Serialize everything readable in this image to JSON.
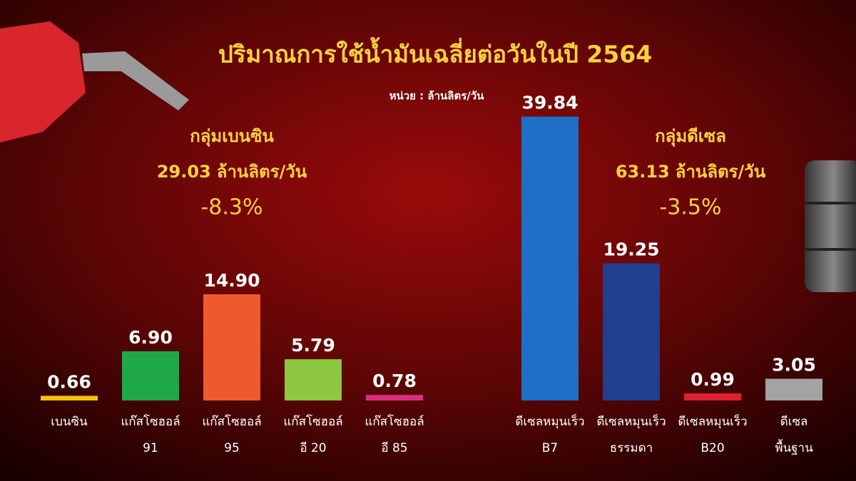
{
  "title": "ปริมาณการใช้น้ำมันเฉลี่ยต่อวันในปี 2564",
  "unit_note": "หน่วย : ล้านลิตร/วัน",
  "chart_data": [
    {
      "type": "bar",
      "group_title": "กลุ่มเบนซิน",
      "total": 29.03,
      "total_unit": "ล้านลิตร/วัน",
      "change": "-8.3%",
      "categories": [
        [
          "เบนซิน"
        ],
        [
          "แก๊สโซฮอล์",
          "91"
        ],
        [
          "แก๊สโซฮอล์",
          "95"
        ],
        [
          "แก๊สโซฮอล์",
          "อี 20"
        ],
        [
          "แก๊สโซฮอล์",
          "อี 85"
        ]
      ],
      "values": [
        0.66,
        6.9,
        14.9,
        5.79,
        0.78
      ],
      "value_labels": [
        "0.66",
        "6.90",
        "14.90",
        "5.79",
        "0.78"
      ],
      "colors": [
        "#f4c20d",
        "#1fa84a",
        "#ef5a2d",
        "#8dc63f",
        "#d8307e"
      ],
      "ylim": [
        0,
        40
      ]
    },
    {
      "type": "bar",
      "group_title": "กลุ่มดีเซล",
      "total": 63.13,
      "total_unit": "ล้านลิตร/วัน",
      "change": "-3.5%",
      "categories": [
        [
          "ดีเซลหมุนเร็ว",
          "B7"
        ],
        [
          "ดีเซลหมุนเร็ว",
          "ธรรมดา"
        ],
        [
          "ดีเซลหมุนเร็ว",
          "B20"
        ],
        [
          "ดีเซล",
          "พื้นฐาน"
        ]
      ],
      "values": [
        39.84,
        19.25,
        0.99,
        3.05
      ],
      "value_labels": [
        "39.84",
        "19.25",
        "0.99",
        "3.05"
      ],
      "colors": [
        "#1f6fc6",
        "#1f3f8f",
        "#e0202e",
        "#a3a3a3"
      ],
      "ylim": [
        0,
        40
      ]
    }
  ]
}
